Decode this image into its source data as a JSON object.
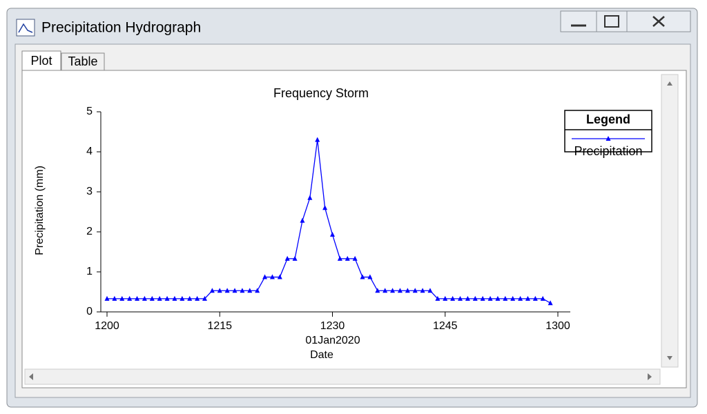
{
  "window": {
    "title": "Precipitation Hydrograph",
    "tabs": [
      "Plot",
      "Table"
    ]
  },
  "chart_data": {
    "type": "line",
    "title": "Frequency Storm",
    "x_date": "01Jan2020",
    "x_label": "Date",
    "y_label": "Precipitation  (mm)",
    "x": [
      720,
      721,
      722,
      723,
      724,
      725,
      726,
      727,
      728,
      729,
      730,
      731,
      732,
      733,
      734,
      735,
      736,
      737,
      738,
      739,
      740,
      741,
      742,
      743,
      744,
      745,
      746,
      747,
      748,
      749,
      750,
      751,
      752,
      753,
      754,
      755,
      756,
      757,
      758,
      759,
      760,
      761,
      762,
      763,
      764,
      765,
      766,
      767,
      768,
      769,
      770,
      771,
      772,
      773,
      774,
      775,
      776,
      777,
      778,
      779
    ],
    "series": [
      {
        "name": "Precipitation",
        "color": "#0000ff",
        "values": [
          0.33,
          0.33,
          0.33,
          0.33,
          0.33,
          0.33,
          0.33,
          0.33,
          0.33,
          0.33,
          0.33,
          0.33,
          0.33,
          0.33,
          0.53,
          0.53,
          0.53,
          0.53,
          0.53,
          0.53,
          0.53,
          0.87,
          0.87,
          0.87,
          1.33,
          1.33,
          2.28,
          2.85,
          4.3,
          2.6,
          1.93,
          1.33,
          1.33,
          1.33,
          0.87,
          0.87,
          0.53,
          0.53,
          0.53,
          0.53,
          0.53,
          0.53,
          0.53,
          0.53,
          0.33,
          0.33,
          0.33,
          0.33,
          0.33,
          0.33,
          0.33,
          0.33,
          0.33,
          0.33,
          0.33,
          0.33,
          0.33,
          0.33,
          0.33,
          0.22
        ]
      }
    ],
    "xlim": [
      720,
      780
    ],
    "xticks": [
      {
        "value": 720,
        "label": "1200"
      },
      {
        "value": 735,
        "label": "1215"
      },
      {
        "value": 750,
        "label": "1230"
      },
      {
        "value": 765,
        "label": "1245"
      },
      {
        "value": 780,
        "label": "1300"
      }
    ],
    "ylim": [
      0,
      5
    ],
    "yticks": [
      0,
      1,
      2,
      3,
      4,
      5
    ],
    "legend_title": "Legend",
    "legend_position": "upper right"
  }
}
